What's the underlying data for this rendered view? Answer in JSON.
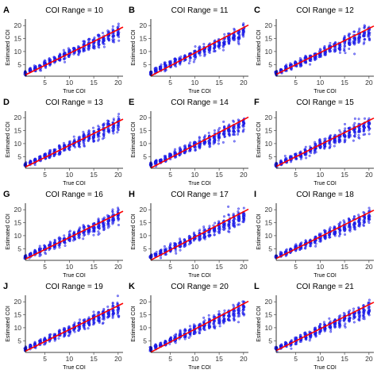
{
  "chart_data": [
    {
      "type": "scatter",
      "panel": "A",
      "title": "COI Range = 10",
      "xlabel": "True COI",
      "ylabel": "Estimated COI",
      "xlim": [
        1,
        21
      ],
      "ylim": [
        0.5,
        22.5
      ],
      "xticks": [
        5,
        10,
        15,
        20
      ],
      "yticks": [
        5,
        10,
        15,
        20
      ],
      "x_range": [
        1,
        20
      ],
      "fit_line": {
        "x": [
          1,
          21
        ],
        "y": [
          1,
          19.4
        ]
      }
    },
    {
      "type": "scatter",
      "panel": "B",
      "title": "COI Range = 11",
      "xlabel": "True COI",
      "ylabel": "Estimated COI",
      "xlim": [
        1,
        21
      ],
      "ylim": [
        0.5,
        22.5
      ],
      "xticks": [
        5,
        10,
        15,
        20
      ],
      "yticks": [
        5,
        10,
        15,
        20
      ],
      "x_range": [
        1,
        20
      ],
      "fit_line": {
        "x": [
          1,
          21
        ],
        "y": [
          0.6,
          20.2
        ]
      }
    },
    {
      "type": "scatter",
      "panel": "C",
      "title": "COI Range = 12",
      "xlabel": "True COI",
      "ylabel": "Estimated COI",
      "xlim": [
        1,
        21
      ],
      "ylim": [
        0.5,
        22.5
      ],
      "xticks": [
        5,
        10,
        15,
        20
      ],
      "yticks": [
        5,
        10,
        15,
        20
      ],
      "x_range": [
        1,
        20
      ],
      "fit_line": {
        "x": [
          1,
          21
        ],
        "y": [
          1.2,
          19.8
        ]
      }
    },
    {
      "type": "scatter",
      "panel": "D",
      "title": "COI Range = 13",
      "xlabel": "True COI",
      "ylabel": "Estimated COI",
      "xlim": [
        1,
        21
      ],
      "ylim": [
        0.5,
        22.5
      ],
      "xticks": [
        5,
        10,
        15,
        20
      ],
      "yticks": [
        5,
        10,
        15,
        20
      ],
      "x_range": [
        1,
        20
      ],
      "fit_line": {
        "x": [
          1,
          21
        ],
        "y": [
          1,
          19.4
        ]
      }
    },
    {
      "type": "scatter",
      "panel": "E",
      "title": "COI Range = 14",
      "xlabel": "True COI",
      "ylabel": "Estimated COI",
      "xlim": [
        1,
        21
      ],
      "ylim": [
        0.5,
        22.5
      ],
      "xticks": [
        5,
        10,
        15,
        20
      ],
      "yticks": [
        5,
        10,
        15,
        20
      ],
      "x_range": [
        1,
        20
      ],
      "fit_line": {
        "x": [
          1,
          21
        ],
        "y": [
          0.6,
          20.2
        ]
      }
    },
    {
      "type": "scatter",
      "panel": "F",
      "title": "COI Range = 15",
      "xlabel": "True COI",
      "ylabel": "Estimated COI",
      "xlim": [
        1,
        21
      ],
      "ylim": [
        0.5,
        22.5
      ],
      "xticks": [
        5,
        10,
        15,
        20
      ],
      "yticks": [
        5,
        10,
        15,
        20
      ],
      "x_range": [
        1,
        20
      ],
      "fit_line": {
        "x": [
          1,
          21
        ],
        "y": [
          1.2,
          19.8
        ]
      }
    },
    {
      "type": "scatter",
      "panel": "G",
      "title": "COI Range = 16",
      "xlabel": "True COI",
      "ylabel": "Estimated COI",
      "xlim": [
        1,
        21
      ],
      "ylim": [
        0.5,
        22.5
      ],
      "xticks": [
        5,
        10,
        15,
        20
      ],
      "yticks": [
        5,
        10,
        15,
        20
      ],
      "x_range": [
        1,
        20
      ],
      "fit_line": {
        "x": [
          1,
          21
        ],
        "y": [
          1,
          19.4
        ]
      }
    },
    {
      "type": "scatter",
      "panel": "H",
      "title": "COI Range = 17",
      "xlabel": "True COI",
      "ylabel": "Estimated COI",
      "xlim": [
        1,
        21
      ],
      "ylim": [
        0.5,
        22.5
      ],
      "xticks": [
        5,
        10,
        15,
        20
      ],
      "yticks": [
        5,
        10,
        15,
        20
      ],
      "x_range": [
        1,
        20
      ],
      "fit_line": {
        "x": [
          1,
          21
        ],
        "y": [
          0.6,
          20.2
        ]
      }
    },
    {
      "type": "scatter",
      "panel": "I",
      "title": "COI Range = 18",
      "xlabel": "True COI",
      "ylabel": "Estimated COI",
      "xlim": [
        1,
        21
      ],
      "ylim": [
        0.5,
        22.5
      ],
      "xticks": [
        5,
        10,
        15,
        20
      ],
      "yticks": [
        5,
        10,
        15,
        20
      ],
      "x_range": [
        1,
        20
      ],
      "fit_line": {
        "x": [
          1,
          21
        ],
        "y": [
          1.2,
          19.8
        ]
      }
    },
    {
      "type": "scatter",
      "panel": "J",
      "title": "COI Range = 19",
      "xlabel": "True COI",
      "ylabel": "Estimated COI",
      "xlim": [
        1,
        21
      ],
      "ylim": [
        0.5,
        22.5
      ],
      "xticks": [
        5,
        10,
        15,
        20
      ],
      "yticks": [
        5,
        10,
        15,
        20
      ],
      "x_range": [
        1,
        20
      ],
      "fit_line": {
        "x": [
          1,
          21
        ],
        "y": [
          1,
          19.4
        ]
      }
    },
    {
      "type": "scatter",
      "panel": "K",
      "title": "COI Range = 20",
      "xlabel": "True COI",
      "ylabel": "Estimated COI",
      "xlim": [
        1,
        21
      ],
      "ylim": [
        0.5,
        22.5
      ],
      "xticks": [
        5,
        10,
        15,
        20
      ],
      "yticks": [
        5,
        10,
        15,
        20
      ],
      "x_range": [
        1,
        20
      ],
      "fit_line": {
        "x": [
          1,
          21
        ],
        "y": [
          0.6,
          20.2
        ]
      }
    },
    {
      "type": "scatter",
      "panel": "L",
      "title": "COI Range = 21",
      "xlabel": "True COI",
      "ylabel": "Estimated COI",
      "xlim": [
        1,
        21
      ],
      "ylim": [
        0.5,
        22.5
      ],
      "xticks": [
        5,
        10,
        15,
        20
      ],
      "yticks": [
        5,
        10,
        15,
        20
      ],
      "x_range": [
        1,
        20
      ],
      "fit_line": {
        "x": [
          1,
          21
        ],
        "y": [
          1.2,
          19.8
        ]
      }
    }
  ],
  "colors": {
    "points": "#3333ff",
    "points_outline": "#0000cc",
    "fit_line": "#ff0000",
    "axis": "#000000"
  }
}
